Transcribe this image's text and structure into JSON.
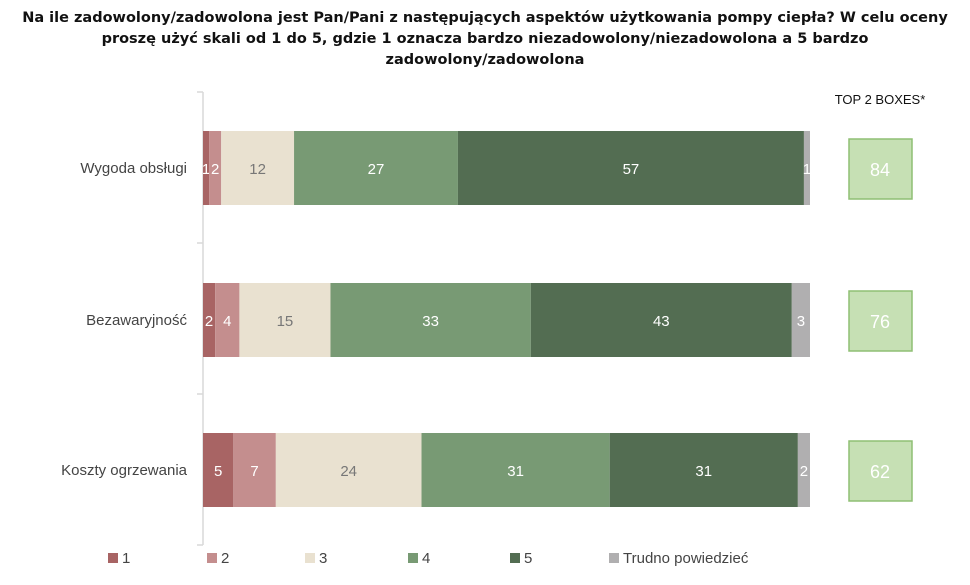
{
  "title_line1": "Na ile zadowolony/zadowolona jest Pan/Pani z następujących aspektów użytkowania pompy ciepła? W celu oceny",
  "title_line2": "proszę użyć skali od 1 do 5, gdzie 1 oznacza bardzo niezadowolony/niezadowolona a 5 bardzo zadowolony/zadowolona",
  "chart_data": {
    "type": "bar",
    "orientation": "horizontal",
    "stacked": true,
    "categories": [
      "Wygoda obsługi",
      "Bezawaryjność",
      "Koszty ogrzewania"
    ],
    "series": [
      {
        "name": "1",
        "color": "#a86464",
        "values": [
          1,
          2,
          5
        ]
      },
      {
        "name": "2",
        "color": "#c48e8e",
        "values": [
          2,
          4,
          7
        ]
      },
      {
        "name": "3",
        "color": "#e9e1d0",
        "values": [
          12,
          15,
          24
        ]
      },
      {
        "name": "4",
        "color": "#789a74",
        "values": [
          27,
          33,
          31
        ]
      },
      {
        "name": "5",
        "color": "#536d52",
        "values": [
          57,
          43,
          31
        ]
      },
      {
        "name": "Trudno powiedzieć",
        "color": "#b0afb0",
        "values": [
          1,
          3,
          2
        ]
      }
    ],
    "xlim": [
      0,
      100
    ],
    "legend": "bottom",
    "top2_label": "TOP 2 BOXES*",
    "top2_values": [
      84,
      76,
      62
    ],
    "top2_color": "#c6e0b4"
  }
}
